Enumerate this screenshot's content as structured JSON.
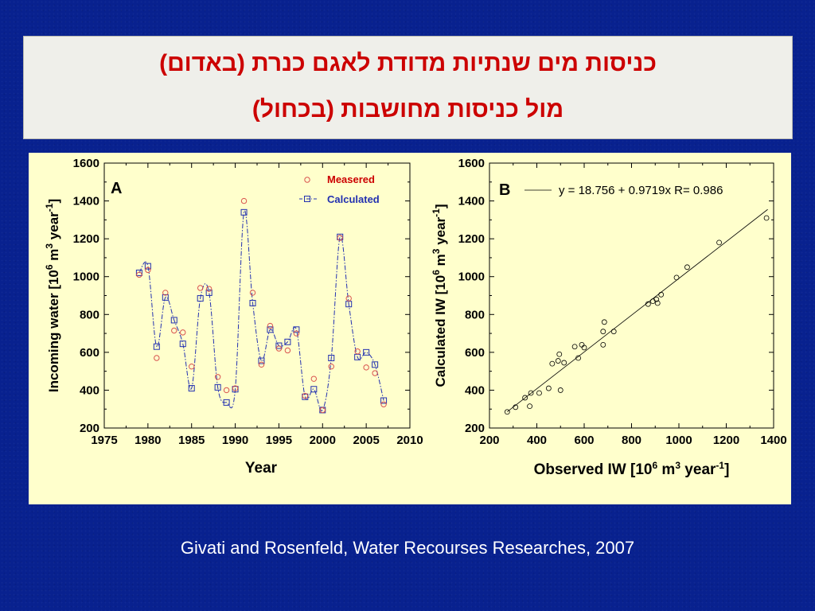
{
  "title": {
    "line1": "כניסות מים שנתיות מדודת לאגם כנרת (באדום)",
    "line2": "מול כניסות מחושבות (בכחול)"
  },
  "citation": "Givati and Rosenfeld, Water Recourses Researches, 2007",
  "colors": {
    "background": "#08218f",
    "panel": "#ffffcc",
    "measured": "#d9534f",
    "calculated": "#2230b0",
    "title": "#cc0000"
  },
  "chart_data": [
    {
      "panel_label": "A",
      "type": "line",
      "xlabel": "Year",
      "ylabel_parts": [
        "Incoming water [10",
        "6",
        " m",
        "3",
        " year",
        "-1",
        "]"
      ],
      "xlim": [
        1975,
        2010
      ],
      "ylim": [
        200,
        1600
      ],
      "xticks": [
        1975,
        1980,
        1985,
        1990,
        1995,
        2000,
        2005,
        2010
      ],
      "yticks": [
        200,
        400,
        600,
        800,
        1000,
        1200,
        1400,
        1600
      ],
      "legend_position": "top-right",
      "series": [
        {
          "name": "Measered",
          "marker": "circle",
          "x": [
            1979,
            1980,
            1981,
            1982,
            1983,
            1984,
            1985,
            1986,
            1987,
            1988,
            1989,
            1990,
            1991,
            1992,
            1993,
            1994,
            1995,
            1996,
            1997,
            1998,
            1999,
            2000,
            2001,
            2002,
            2003,
            2004,
            2005,
            2006,
            2007
          ],
          "values": [
            1010,
            1035,
            570,
            915,
            715,
            705,
            525,
            940,
            935,
            470,
            400,
            410,
            1400,
            915,
            535,
            740,
            620,
            610,
            700,
            370,
            460,
            295,
            525,
            1205,
            885,
            605,
            520,
            490,
            325
          ]
        },
        {
          "name": "Calculated",
          "marker": "square",
          "x": [
            1979,
            1980,
            1981,
            1982,
            1983,
            1984,
            1985,
            1986,
            1987,
            1988,
            1989,
            1990,
            1991,
            1992,
            1993,
            1994,
            1995,
            1996,
            1997,
            1998,
            1999,
            2000,
            2001,
            2002,
            2003,
            2004,
            2005,
            2006,
            2007
          ],
          "values": [
            1020,
            1055,
            630,
            890,
            770,
            645,
            410,
            885,
            915,
            415,
            335,
            405,
            1340,
            860,
            555,
            720,
            635,
            655,
            720,
            365,
            405,
            295,
            570,
            1210,
            855,
            575,
            600,
            535,
            345
          ]
        }
      ]
    },
    {
      "panel_label": "B",
      "type": "scatter",
      "xlabel_parts": [
        "Observed  IW [10",
        "6",
        " m",
        "3",
        " year",
        "-1",
        "]"
      ],
      "ylabel_parts": [
        "Calculated IW [10",
        "6",
        " m",
        "3",
        " year",
        "-1",
        "]"
      ],
      "xlim": [
        200,
        1400
      ],
      "ylim": [
        200,
        1600
      ],
      "xticks": [
        200,
        400,
        600,
        800,
        1000,
        1200,
        1400
      ],
      "yticks": [
        200,
        400,
        600,
        800,
        1000,
        1200,
        1400,
        1600
      ],
      "fit_label": "y = 18.756 + 0.9719x   R= 0.986",
      "fit": {
        "intercept": 18.756,
        "slope": 0.9719,
        "x_range": [
          275,
          1375
        ]
      },
      "points": [
        [
          275,
          285
        ],
        [
          310,
          310
        ],
        [
          350,
          360
        ],
        [
          370,
          315
        ],
        [
          375,
          385
        ],
        [
          410,
          385
        ],
        [
          450,
          410
        ],
        [
          465,
          540
        ],
        [
          490,
          555
        ],
        [
          495,
          590
        ],
        [
          500,
          400
        ],
        [
          515,
          545
        ],
        [
          560,
          630
        ],
        [
          575,
          570
        ],
        [
          590,
          640
        ],
        [
          600,
          625
        ],
        [
          680,
          640
        ],
        [
          680,
          710
        ],
        [
          685,
          760
        ],
        [
          725,
          710
        ],
        [
          870,
          855
        ],
        [
          890,
          870
        ],
        [
          905,
          880
        ],
        [
          910,
          860
        ],
        [
          925,
          905
        ],
        [
          990,
          995
        ],
        [
          1035,
          1050
        ],
        [
          1170,
          1180
        ],
        [
          1370,
          1310
        ]
      ]
    }
  ]
}
